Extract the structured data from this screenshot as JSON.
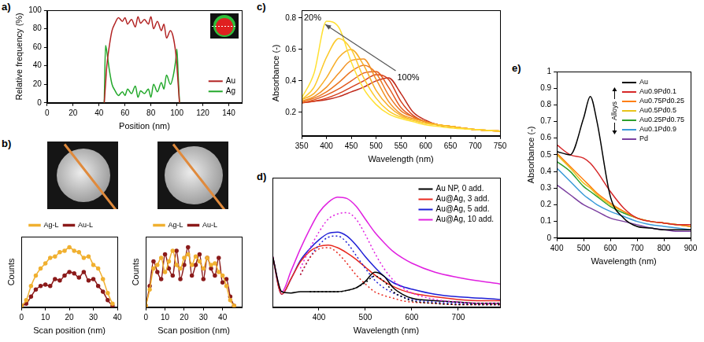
{
  "chart_data": [
    {
      "panel": "a)",
      "type": "line",
      "x_label": "Position (nm)",
      "y_label": "Relative frequency (%)",
      "x": [
        44,
        45,
        46,
        48,
        50,
        52,
        55,
        58,
        60,
        62,
        65,
        68,
        70,
        72,
        75,
        78,
        80,
        82,
        85,
        88,
        90,
        92,
        95,
        97,
        99,
        100,
        101,
        102
      ],
      "series": [
        {
          "name": "Au",
          "color": "#b22222",
          "values": [
            0,
            20,
            40,
            62,
            78,
            85,
            92,
            88,
            92,
            85,
            90,
            82,
            93,
            86,
            90,
            85,
            93,
            80,
            88,
            78,
            85,
            70,
            78,
            72,
            55,
            40,
            20,
            0
          ]
        },
        {
          "name": "Ag",
          "color": "#22a82a",
          "values": [
            0,
            62,
            55,
            35,
            20,
            14,
            8,
            12,
            8,
            15,
            10,
            18,
            6,
            13,
            10,
            15,
            6,
            20,
            12,
            22,
            15,
            30,
            20,
            28,
            45,
            58,
            30,
            0
          ]
        }
      ],
      "xlim": [
        0,
        150
      ],
      "xticks": [
        0,
        20,
        40,
        60,
        80,
        100,
        120,
        140
      ],
      "ylim": [
        0,
        100
      ],
      "yticks": [
        0,
        20,
        40,
        60,
        80,
        100
      ],
      "legend": "lower right"
    },
    {
      "panel": "b)",
      "type": "line",
      "x_label": "Scan position (nm)",
      "y_label": "Counts",
      "x": [
        0,
        2,
        4,
        6,
        8,
        10,
        12,
        14,
        16,
        18,
        20,
        22,
        24,
        26,
        28,
        30,
        32,
        34,
        36,
        38
      ],
      "series": [
        {
          "name": "Ag-L",
          "color": "#f0b030",
          "marker": "circle",
          "values": [
            0.02,
            0.1,
            0.3,
            0.45,
            0.55,
            0.62,
            0.7,
            0.72,
            0.78,
            0.8,
            0.85,
            0.8,
            0.78,
            0.7,
            0.72,
            0.6,
            0.55,
            0.4,
            0.2,
            0.05
          ]
        },
        {
          "name": "Au-L",
          "color": "#8b1a1a",
          "marker": "circle",
          "values": [
            0.02,
            0.05,
            0.15,
            0.25,
            0.3,
            0.32,
            0.3,
            0.4,
            0.38,
            0.45,
            0.5,
            0.48,
            0.42,
            0.5,
            0.38,
            0.4,
            0.3,
            0.22,
            0.1,
            0.02
          ]
        }
      ],
      "xlim": [
        0,
        40
      ],
      "xticks": [
        0,
        10,
        20,
        30,
        40
      ],
      "ylim": [
        0,
        1
      ],
      "tick_labels": "x",
      "legend": "top"
    },
    {
      "type": "line",
      "x_label": "Scan position (nm)",
      "y_label": "Counts",
      "x": [
        0,
        2,
        4,
        6,
        8,
        10,
        12,
        14,
        16,
        18,
        20,
        22,
        24,
        26,
        28,
        30,
        32,
        34,
        36,
        38,
        40,
        42,
        44,
        46
      ],
      "series": [
        {
          "name": "Ag-L",
          "color": "#f0b030",
          "marker": "circle",
          "values": [
            0.02,
            0.25,
            0.55,
            0.6,
            0.7,
            0.5,
            0.65,
            0.8,
            0.6,
            0.55,
            0.7,
            0.75,
            0.6,
            0.72,
            0.65,
            0.55,
            0.7,
            0.6,
            0.62,
            0.5,
            0.45,
            0.3,
            0.1,
            0.02
          ]
        },
        {
          "name": "Au-L",
          "color": "#8b1a1a",
          "marker": "circle",
          "values": [
            0.02,
            0.3,
            0.65,
            0.5,
            0.4,
            0.75,
            0.55,
            0.45,
            0.8,
            0.4,
            0.6,
            0.85,
            0.45,
            0.6,
            0.75,
            0.4,
            0.7,
            0.55,
            0.45,
            0.7,
            0.35,
            0.4,
            0.15,
            0.02
          ]
        }
      ],
      "xlim": [
        0,
        50
      ],
      "xticks": [
        0,
        10,
        20,
        30,
        40
      ],
      "ylim": [
        0,
        1
      ],
      "tick_labels": "x",
      "legend": "top"
    },
    {
      "panel": "c)",
      "type": "line",
      "x_label": "Wavelength (nm)",
      "y_label": "Absorbance (-)",
      "x": [
        350,
        375,
        400,
        425,
        450,
        475,
        500,
        525,
        550,
        575,
        600,
        625,
        650,
        700,
        750
      ],
      "series": [
        {
          "color": "#ffe033",
          "values": [
            0.29,
            0.45,
            0.78,
            0.74,
            0.52,
            0.35,
            0.25,
            0.19,
            0.16,
            0.14,
            0.12,
            0.11,
            0.1,
            0.09,
            0.08
          ]
        },
        {
          "color": "#fcc92a",
          "values": [
            0.28,
            0.36,
            0.55,
            0.67,
            0.6,
            0.42,
            0.29,
            0.21,
            0.17,
            0.15,
            0.13,
            0.12,
            0.11,
            0.09,
            0.08
          ]
        },
        {
          "color": "#f7ad26",
          "values": [
            0.28,
            0.32,
            0.42,
            0.55,
            0.6,
            0.5,
            0.34,
            0.24,
            0.18,
            0.15,
            0.13,
            0.12,
            0.11,
            0.09,
            0.08
          ]
        },
        {
          "color": "#f29224",
          "values": [
            0.27,
            0.3,
            0.36,
            0.45,
            0.53,
            0.54,
            0.41,
            0.27,
            0.19,
            0.16,
            0.14,
            0.12,
            0.11,
            0.09,
            0.08
          ]
        },
        {
          "color": "#eb7621",
          "values": [
            0.27,
            0.29,
            0.33,
            0.39,
            0.46,
            0.5,
            0.45,
            0.31,
            0.21,
            0.17,
            0.14,
            0.12,
            0.11,
            0.09,
            0.08
          ]
        },
        {
          "color": "#e25a1f",
          "values": [
            0.26,
            0.28,
            0.31,
            0.35,
            0.4,
            0.45,
            0.46,
            0.36,
            0.23,
            0.17,
            0.14,
            0.12,
            0.11,
            0.09,
            0.08
          ]
        },
        {
          "color": "#d5401e",
          "values": [
            0.26,
            0.27,
            0.29,
            0.32,
            0.36,
            0.4,
            0.44,
            0.41,
            0.27,
            0.18,
            0.14,
            0.12,
            0.11,
            0.09,
            0.08
          ]
        },
        {
          "color": "#c02a1c",
          "values": [
            0.26,
            0.27,
            0.28,
            0.3,
            0.33,
            0.36,
            0.4,
            0.42,
            0.32,
            0.2,
            0.15,
            0.12,
            0.11,
            0.09,
            0.08
          ]
        }
      ],
      "xlim": [
        350,
        750
      ],
      "xticks": [
        350,
        400,
        450,
        500,
        550,
        600,
        650,
        700,
        750
      ],
      "ylim": [
        0.05,
        0.85
      ],
      "yticks": [
        0.2,
        0.4,
        0.6,
        0.8
      ],
      "annotations": [
        {
          "text": "20%",
          "x": 372,
          "y": 0.8
        },
        {
          "text": "100%",
          "x": 565,
          "y": 0.42
        }
      ]
    },
    {
      "panel": "d)",
      "type": "line",
      "x_label": "Wavelength (nm)",
      "x": [
        300,
        320,
        340,
        360,
        380,
        400,
        420,
        440,
        460,
        480,
        500,
        520,
        540,
        560,
        580,
        600,
        650,
        700,
        750,
        790
      ],
      "series": [
        {
          "color": "#000000",
          "line_style": "dotted",
          "values": [
            null,
            null,
            null,
            null,
            0.12,
            0.12,
            0.12,
            0.12,
            0.13,
            0.15,
            0.19,
            0.24,
            0.2,
            0.12,
            0.08,
            0.05,
            0.03,
            0.02,
            0.02,
            0.02
          ]
        },
        {
          "color": "#e8281e",
          "line_style": "dotted",
          "values": [
            null,
            null,
            null,
            0.25,
            0.38,
            0.45,
            0.46,
            0.42,
            0.34,
            0.25,
            0.18,
            0.12,
            0.09,
            0.07,
            0.05,
            0.04,
            0.03,
            0.02,
            0.02,
            0.02
          ]
        },
        {
          "color": "#1f1fd6",
          "line_style": "dotted",
          "values": [
            null,
            null,
            null,
            0.25,
            0.38,
            0.48,
            0.54,
            0.55,
            0.5,
            0.4,
            0.3,
            0.21,
            0.15,
            0.11,
            0.08,
            0.06,
            0.04,
            0.03,
            0.02,
            0.02
          ]
        },
        {
          "color": "#e020e0",
          "line_style": "dotted",
          "values": [
            null,
            null,
            null,
            0.3,
            0.45,
            0.58,
            0.68,
            0.72,
            0.73,
            0.68,
            0.56,
            0.42,
            0.3,
            0.21,
            0.15,
            0.11,
            0.06,
            0.04,
            0.03,
            0.03
          ]
        },
        {
          "name": "Au NP, 0 add.",
          "color": "#000000",
          "values": [
            0.4,
            0.12,
            0.11,
            0.12,
            0.12,
            0.12,
            0.12,
            0.12,
            0.13,
            0.15,
            0.2,
            0.27,
            0.24,
            0.15,
            0.1,
            0.07,
            0.05,
            0.04,
            0.03,
            0.03
          ]
        },
        {
          "name": "Au@Ag, 3 add.",
          "color": "#e8281e",
          "values": [
            0.4,
            0.1,
            0.22,
            0.35,
            0.43,
            0.47,
            0.48,
            0.46,
            0.42,
            0.37,
            0.31,
            0.25,
            0.2,
            0.16,
            0.13,
            0.11,
            0.08,
            0.06,
            0.05,
            0.05
          ]
        },
        {
          "name": "Au@Ag, 5 add.",
          "color": "#1f1fd6",
          "values": [
            0.4,
            0.1,
            0.22,
            0.36,
            0.45,
            0.52,
            0.57,
            0.58,
            0.55,
            0.48,
            0.39,
            0.31,
            0.24,
            0.19,
            0.16,
            0.14,
            0.1,
            0.08,
            0.07,
            0.06
          ]
        },
        {
          "name": "Au@Ag, 10 add.",
          "color": "#e020e0",
          "values": [
            0.4,
            0.12,
            0.28,
            0.45,
            0.6,
            0.73,
            0.81,
            0.85,
            0.84,
            0.78,
            0.68,
            0.58,
            0.5,
            0.43,
            0.38,
            0.34,
            0.27,
            0.23,
            0.2,
            0.18
          ]
        }
      ],
      "xlim": [
        300,
        790
      ],
      "xticks": [
        400,
        500,
        600,
        700
      ],
      "ylim": [
        0,
        1
      ],
      "tick_labels": "x",
      "legend": "upper right"
    },
    {
      "panel": "e)",
      "type": "line",
      "x_label": "Wavelength (nm)",
      "y_label": "Absorbance (-)",
      "x": [
        400,
        450,
        500,
        525,
        550,
        600,
        650,
        700,
        750,
        800,
        850,
        900
      ],
      "series": [
        {
          "name": "Au",
          "color": "#000000",
          "values": [
            0.52,
            0.5,
            0.72,
            0.85,
            0.7,
            0.25,
            0.12,
            0.07,
            0.06,
            0.05,
            0.05,
            0.05
          ]
        },
        {
          "name": "Au0.9Pd0.1",
          "color": "#d62728",
          "values": [
            0.56,
            0.5,
            0.48,
            0.45,
            0.4,
            0.28,
            0.18,
            0.12,
            0.1,
            0.09,
            0.08,
            0.08
          ]
        },
        {
          "name": "Au0.75Pd0.25",
          "color": "#ff7f0e",
          "values": [
            0.51,
            0.43,
            0.35,
            0.31,
            0.27,
            0.21,
            0.16,
            0.12,
            0.1,
            0.09,
            0.08,
            0.07
          ]
        },
        {
          "name": "Au0.5Pd0.5",
          "color": "#e8c31a",
          "values": [
            0.5,
            0.42,
            0.33,
            0.3,
            0.26,
            0.2,
            0.16,
            0.12,
            0.1,
            0.09,
            0.08,
            0.07
          ]
        },
        {
          "name": "Au0.25Pd0.75",
          "color": "#2ca02c",
          "values": [
            0.46,
            0.4,
            0.31,
            0.28,
            0.25,
            0.19,
            0.15,
            0.12,
            0.1,
            0.09,
            0.08,
            0.07
          ]
        },
        {
          "name": "Au0.1Pd0.9",
          "color": "#3a9ad9",
          "values": [
            0.42,
            0.34,
            0.26,
            0.23,
            0.2,
            0.16,
            0.13,
            0.1,
            0.08,
            0.07,
            0.06,
            0.05
          ]
        },
        {
          "name": "Pd",
          "color": "#7b3fa0",
          "values": [
            0.32,
            0.26,
            0.2,
            0.18,
            0.16,
            0.12,
            0.1,
            0.08,
            0.06,
            0.05,
            0.04,
            0.04
          ]
        }
      ],
      "xlim": [
        400,
        900
      ],
      "xticks": [
        400,
        500,
        600,
        700,
        800,
        900
      ],
      "ylim": [
        0,
        1
      ],
      "yticks": [
        0,
        0.1,
        0.2,
        0.3,
        0.4,
        0.5,
        0.6,
        0.7,
        0.8,
        0.9,
        1
      ],
      "legend": "upper right",
      "annotations": [
        {
          "text": "Alloys"
        }
      ]
    }
  ]
}
